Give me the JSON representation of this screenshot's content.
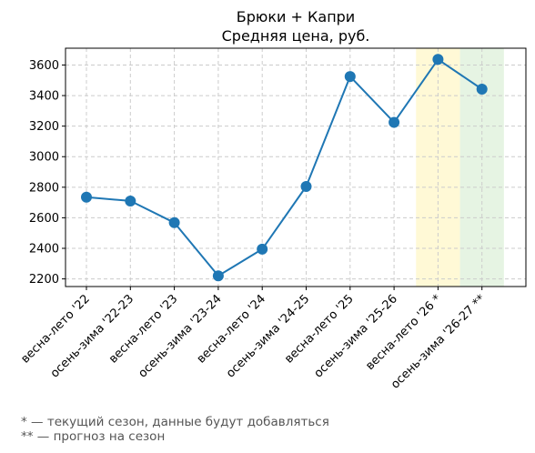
{
  "chart_data": {
    "type": "line",
    "title": "Брюки + Капри",
    "subtitle": "Средняя цена, руб.",
    "categories": [
      "весна-лето '22",
      "осень-зима '22-23",
      "весна-лето '23",
      "осень-зима '23-24",
      "весна-лето '24",
      "осень-зима '24-25",
      "весна-лето '25",
      "осень-зима '25-26",
      "весна-лето '26 *",
      "осень-зима '26-27 **"
    ],
    "series": [
      {
        "values": [
          2735,
          2710,
          2568,
          2220,
          2395,
          2805,
          3525,
          3225,
          3637,
          3442
        ]
      }
    ],
    "ylim": [
      2150,
      3710
    ],
    "yticks": [
      2200,
      2400,
      2600,
      2800,
      3000,
      3200,
      3400,
      3600
    ],
    "grid": true,
    "line_color": "#1f77b4",
    "highlights": [
      {
        "category": "весна-лето '26 *",
        "color": "#fff9d6"
      },
      {
        "category": "осень-зима '26-27 **",
        "color": "#e6f4e3"
      }
    ]
  },
  "footnotes": [
    "* — текущий сезон, данные будут добавляться",
    "** — прогноз на сезон"
  ]
}
